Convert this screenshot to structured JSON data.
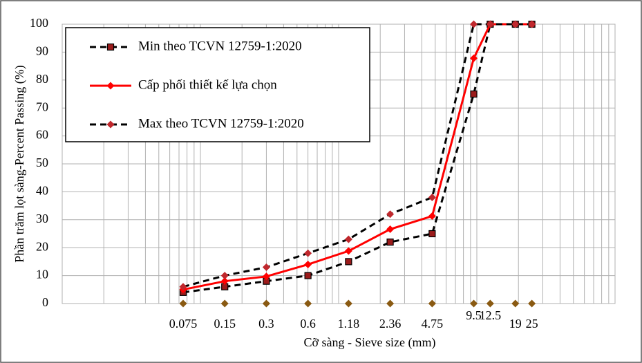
{
  "chart_data": {
    "type": "line",
    "x_label": "Cỡ sàng - Sieve size (mm)",
    "y_label": "Phần trăm lọt sàng-Percent Passing (%)",
    "x": [
      0.075,
      0.15,
      0.3,
      0.6,
      1.18,
      2.36,
      4.75,
      9.5,
      12.5,
      19,
      25
    ],
    "xlim": [
      0.01,
      100
    ],
    "xscale": "log",
    "ylim": [
      0,
      100
    ],
    "yticks": [
      0,
      10,
      20,
      30,
      40,
      50,
      60,
      70,
      80,
      90,
      100
    ],
    "grid": true,
    "legend": "upper left",
    "series": [
      {
        "name": "Min theo TCVN 12759-1:2020",
        "color": "#000000",
        "marker_color": "#9b1b1b",
        "marker": "square",
        "dash": true,
        "values": [
          4,
          6,
          8,
          10,
          15,
          22,
          25,
          75,
          100,
          100,
          100
        ]
      },
      {
        "name": "Cấp phối thiết kế lựa chọn",
        "color": "#ff0000",
        "marker_color": "#ff0000",
        "marker": "diamond",
        "dash": false,
        "values": [
          5,
          8,
          9.7,
          14,
          18.8,
          26.6,
          31.3,
          87.8,
          100,
          100,
          100
        ]
      },
      {
        "name": "Max theo TCVN 12759-1:2020",
        "color": "#000000",
        "marker_color": "#c0282d",
        "marker": "diamond",
        "dash": true,
        "values": [
          6,
          10,
          13,
          18,
          23,
          32,
          38,
          100,
          100,
          100,
          100
        ]
      },
      {
        "color": "#8a5a12",
        "marker_color": "#8a5a12",
        "marker": "diamond",
        "line": false,
        "values": [
          0,
          0,
          0,
          0,
          0,
          0,
          0,
          0,
          0,
          0,
          0
        ]
      }
    ]
  }
}
